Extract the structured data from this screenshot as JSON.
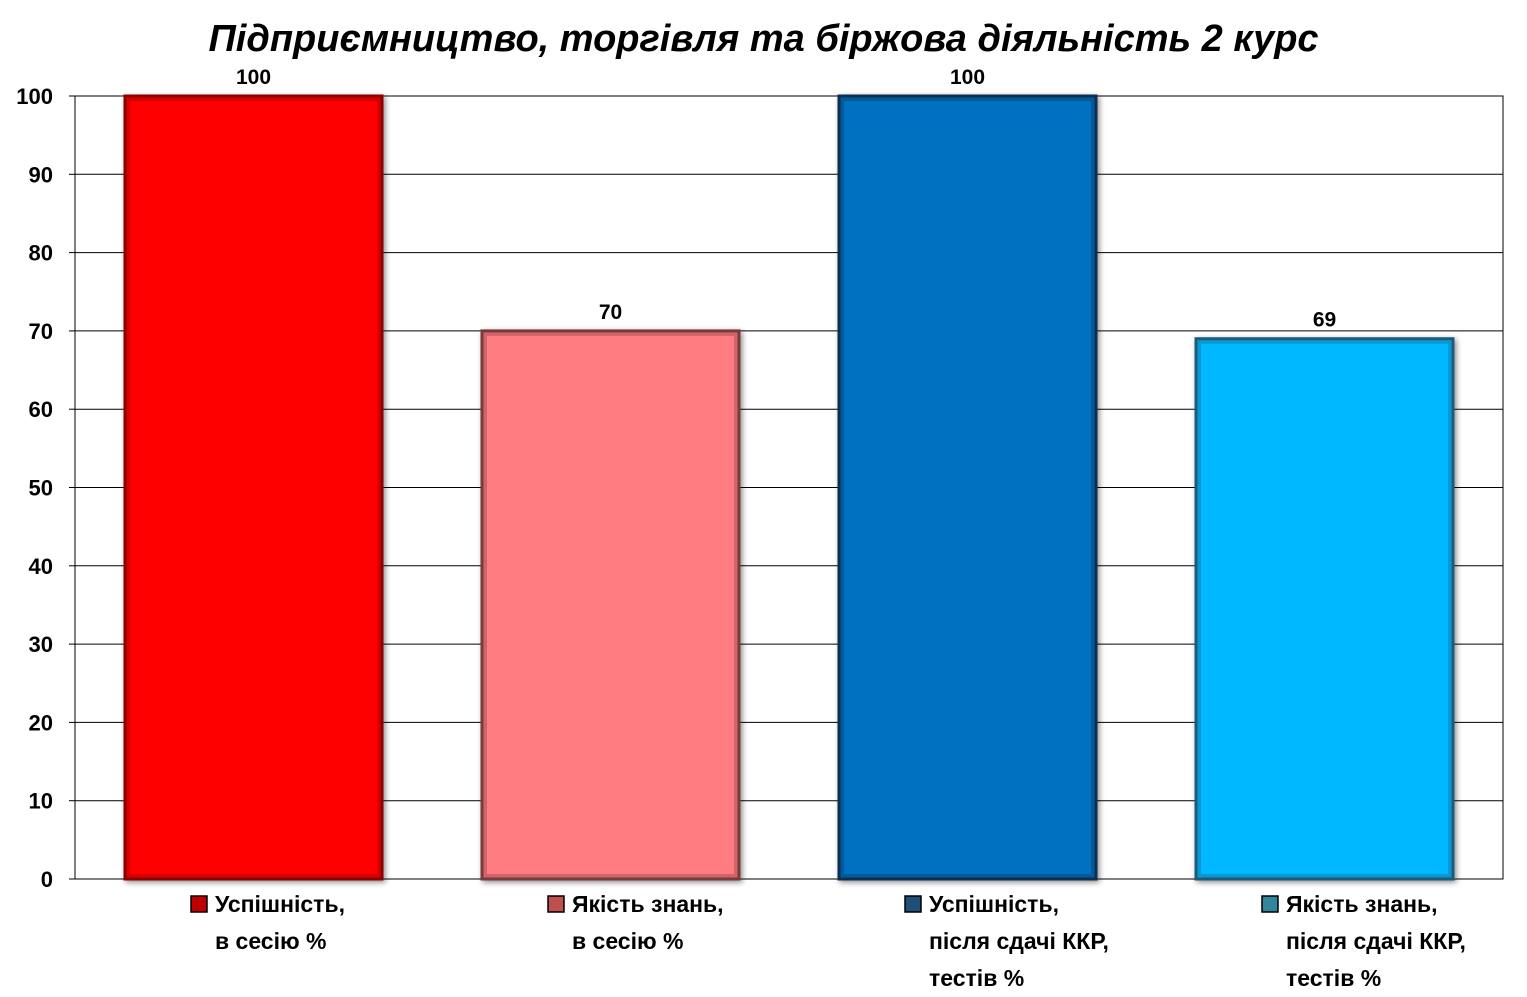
{
  "chart_data": {
    "type": "bar",
    "title": "Підприємництво, торгівля та біржова діяльність 2 курс",
    "ylim": [
      0,
      100
    ],
    "yticks": [
      0,
      10,
      20,
      30,
      40,
      50,
      60,
      70,
      80,
      90,
      100
    ],
    "grid": true,
    "legend_position": "bottom",
    "series": [
      {
        "name": "Успішність,\nв сесію %",
        "value": 100,
        "value_label": "100",
        "color": "#ff0000",
        "edge": "#8b0000",
        "legend_color": "#c00000"
      },
      {
        "name": "Якість знань,\nв сесію %",
        "value": 70,
        "value_label": "70",
        "color": "#ff7c80",
        "edge": "#7a3a3c",
        "legend_color": "#c0504d"
      },
      {
        "name": "Успішність,\nпісля сдачі ККР,\nтестів %",
        "value": 100,
        "value_label": "100",
        "color": "#0070c0",
        "edge": "#0b2f52",
        "legend_color": "#1f4e79"
      },
      {
        "name": "Якість знань,\nпісля сдачі ККР,\nтестів %",
        "value": 69,
        "value_label": "69",
        "color": "#00b8ff",
        "edge": "#1a5c7a",
        "legend_color": "#31859c"
      }
    ]
  }
}
